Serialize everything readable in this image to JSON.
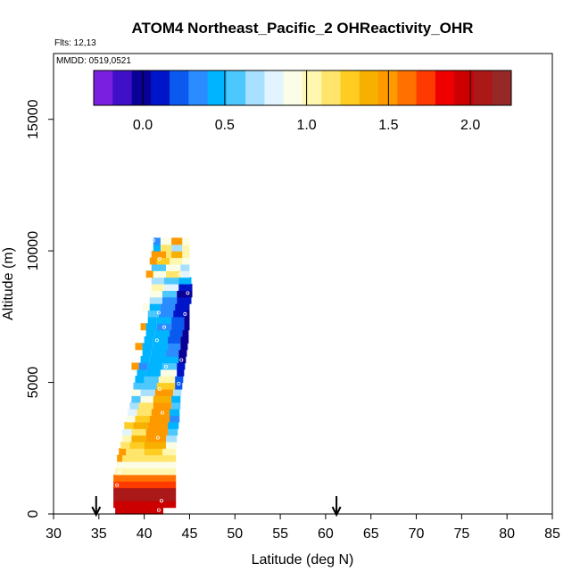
{
  "chart_data": {
    "type": "heatmap",
    "title": "ATOM4 Northeast_Pacific_2 OHReactivity_OHR",
    "flights_label": "Flts: 12,13",
    "mmdd_label": "MMDD: 0519,0521",
    "xlabel": "Latitude (deg N)",
    "ylabel": "Altitude (m)",
    "xlim": [
      30,
      85
    ],
    "ylim": [
      0,
      17500
    ],
    "x_ticks": [
      "30",
      "35",
      "40",
      "45",
      "50",
      "55",
      "60",
      "65",
      "70",
      "75",
      "80",
      "85"
    ],
    "y_ticks": [
      "0",
      "5000",
      "10000",
      "15000"
    ],
    "colorbar": {
      "range": [
        -0.3,
        2.25
      ],
      "ticks": [
        "0.0",
        "0.5",
        "1.0",
        "1.5",
        "2.0"
      ],
      "colors": [
        "#7a1fe0",
        "#3f10c8",
        "#0a0096",
        "#0014c8",
        "#0a5af0",
        "#2a8cff",
        "#00b4ff",
        "#4cc8ff",
        "#a8e0ff",
        "#e2f4ff",
        "#fbfde6",
        "#fff7b0",
        "#ffe56a",
        "#ffcc22",
        "#f8b000",
        "#ff9900",
        "#ff7000",
        "#ff3a00",
        "#ee0000",
        "#cc0000",
        "#aa1818",
        "#962828"
      ]
    },
    "arrows_lat": [
      34.7,
      61.2
    ],
    "alt_bin_m": 250,
    "rows": [
      {
        "alt": 125,
        "cells": [
          [
            36.8,
            42.1,
            1.95
          ]
        ]
      },
      {
        "alt": 375,
        "cells": [
          [
            36.6,
            43.5,
            2.0
          ]
        ]
      },
      {
        "alt": 625,
        "cells": [
          [
            36.6,
            43.5,
            2.05
          ]
        ]
      },
      {
        "alt": 875,
        "cells": [
          [
            36.6,
            43.5,
            2.1
          ]
        ]
      },
      {
        "alt": 1125,
        "cells": [
          [
            36.6,
            43.5,
            1.7
          ]
        ]
      },
      {
        "alt": 1375,
        "cells": [
          [
            36.6,
            43.5,
            1.6
          ]
        ]
      },
      {
        "alt": 1625,
        "cells": [
          [
            36.8,
            43.5,
            1.0
          ]
        ]
      },
      {
        "alt": 1875,
        "cells": [
          [
            37.0,
            43.5,
            0.95
          ]
        ]
      },
      {
        "alt": 2125,
        "cells": [
          [
            37.0,
            37.6,
            1.5
          ],
          [
            37.6,
            40.0,
            1.2
          ],
          [
            40.0,
            42.0,
            1.1
          ],
          [
            42.0,
            43.5,
            1.15
          ]
        ]
      },
      {
        "alt": 2375,
        "cells": [
          [
            37.2,
            38.0,
            1.45
          ],
          [
            38.0,
            40.0,
            1.1
          ],
          [
            40.0,
            42.0,
            1.25
          ],
          [
            42.0,
            43.5,
            1.05
          ]
        ]
      },
      {
        "alt": 2625,
        "cells": [
          [
            37.4,
            38.4,
            1.1
          ],
          [
            38.4,
            40.0,
            1.3
          ],
          [
            40.0,
            42.4,
            1.4
          ],
          [
            42.4,
            43.6,
            0.95
          ]
        ]
      },
      {
        "alt": 2875,
        "cells": [
          [
            37.6,
            38.6,
            1.0
          ],
          [
            38.6,
            40.2,
            1.35
          ],
          [
            40.2,
            42.4,
            1.5
          ],
          [
            42.4,
            43.6,
            0.7
          ]
        ]
      },
      {
        "alt": 3125,
        "cells": [
          [
            37.6,
            38.6,
            0.8
          ],
          [
            38.6,
            40.2,
            1.2
          ],
          [
            40.2,
            42.6,
            1.45
          ],
          [
            42.6,
            43.7,
            0.6
          ]
        ]
      },
      {
        "alt": 3375,
        "cells": [
          [
            37.8,
            38.8,
            1.25
          ],
          [
            38.8,
            40.4,
            1.4
          ],
          [
            40.4,
            42.6,
            1.55
          ],
          [
            42.6,
            43.8,
            0.4
          ]
        ]
      },
      {
        "alt": 3625,
        "cells": [
          [
            38.0,
            39.0,
            0.9
          ],
          [
            39.0,
            40.6,
            1.3
          ],
          [
            40.6,
            42.8,
            1.5
          ],
          [
            42.8,
            43.9,
            0.3
          ]
        ]
      },
      {
        "alt": 3875,
        "cells": [
          [
            38.2,
            39.2,
            0.8
          ],
          [
            39.2,
            40.8,
            1.2
          ],
          [
            40.8,
            42.8,
            1.45
          ],
          [
            42.8,
            43.9,
            0.5
          ]
        ]
      },
      {
        "alt": 4125,
        "cells": [
          [
            38.4,
            39.4,
            0.65
          ],
          [
            39.4,
            41.0,
            1.1
          ],
          [
            41.0,
            43.0,
            1.55
          ],
          [
            43.0,
            44.0,
            0.6
          ]
        ]
      },
      {
        "alt": 4375,
        "cells": [
          [
            38.6,
            39.6,
            0.55
          ],
          [
            39.6,
            41.0,
            0.9
          ],
          [
            41.0,
            43.0,
            1.4
          ],
          [
            43.0,
            44.0,
            0.5
          ]
        ]
      },
      {
        "alt": 4625,
        "cells": [
          [
            38.6,
            39.6,
            0.9
          ],
          [
            39.6,
            41.2,
            0.7
          ],
          [
            41.2,
            43.2,
            1.5
          ],
          [
            43.2,
            44.1,
            0.7
          ]
        ]
      },
      {
        "alt": 4875,
        "cells": [
          [
            38.8,
            39.8,
            0.6
          ],
          [
            39.8,
            41.4,
            0.55
          ],
          [
            41.4,
            43.4,
            1.3
          ],
          [
            43.4,
            44.2,
            0.25
          ]
        ]
      },
      {
        "alt": 5125,
        "cells": [
          [
            39.0,
            40.0,
            0.4
          ],
          [
            40.0,
            41.6,
            0.6
          ],
          [
            41.6,
            43.4,
            1.0
          ],
          [
            43.4,
            44.3,
            0.2
          ]
        ]
      },
      {
        "alt": 5375,
        "cells": [
          [
            39.2,
            40.2,
            0.45
          ],
          [
            40.2,
            41.8,
            0.5
          ],
          [
            41.8,
            43.6,
            0.9
          ],
          [
            43.6,
            44.4,
            0.15
          ]
        ]
      },
      {
        "alt": 5625,
        "cells": [
          [
            38.6,
            39.4,
            1.55
          ],
          [
            39.4,
            40.4,
            0.35
          ],
          [
            40.4,
            42.0,
            0.45
          ],
          [
            42.0,
            43.6,
            0.6
          ],
          [
            43.6,
            44.5,
            0.05
          ]
        ]
      },
      {
        "alt": 5875,
        "cells": [
          [
            39.6,
            40.6,
            0.4
          ],
          [
            40.6,
            42.2,
            0.45
          ],
          [
            42.2,
            43.8,
            0.45
          ],
          [
            43.8,
            44.6,
            0.0
          ]
        ]
      },
      {
        "alt": 6125,
        "cells": [
          [
            39.8,
            40.8,
            0.4
          ],
          [
            40.8,
            42.4,
            0.4
          ],
          [
            42.4,
            43.8,
            0.35
          ],
          [
            43.8,
            44.7,
            -0.05
          ]
        ]
      },
      {
        "alt": 6375,
        "cells": [
          [
            39.0,
            39.8,
            1.45
          ],
          [
            39.8,
            41.0,
            0.45
          ],
          [
            41.0,
            42.6,
            0.4
          ],
          [
            42.6,
            44.0,
            0.3
          ],
          [
            44.0,
            44.8,
            0.0
          ]
        ]
      },
      {
        "alt": 6625,
        "cells": [
          [
            40.0,
            41.0,
            0.4
          ],
          [
            41.0,
            42.6,
            0.45
          ],
          [
            42.6,
            44.0,
            0.25
          ],
          [
            44.0,
            44.9,
            0.0
          ]
        ]
      },
      {
        "alt": 6875,
        "cells": [
          [
            40.2,
            41.2,
            0.5
          ],
          [
            41.2,
            42.8,
            0.4
          ],
          [
            42.8,
            44.2,
            0.25
          ],
          [
            44.2,
            44.9,
            -0.05
          ]
        ]
      },
      {
        "alt": 7125,
        "cells": [
          [
            39.6,
            40.2,
            1.5
          ],
          [
            40.2,
            41.4,
            0.45
          ],
          [
            41.4,
            43.0,
            0.35
          ],
          [
            43.0,
            44.4,
            0.2
          ],
          [
            44.4,
            45.0,
            0.0
          ]
        ]
      },
      {
        "alt": 7375,
        "cells": [
          [
            40.4,
            41.4,
            0.5
          ],
          [
            41.4,
            43.0,
            0.4
          ],
          [
            43.0,
            44.4,
            0.25
          ],
          [
            44.4,
            45.0,
            -0.05
          ]
        ]
      },
      {
        "alt": 7625,
        "cells": [
          [
            40.4,
            41.6,
            0.6
          ],
          [
            41.6,
            43.2,
            0.35
          ],
          [
            43.2,
            44.6,
            0.15
          ],
          [
            44.6,
            45.0,
            0.0
          ]
        ]
      },
      {
        "alt": 7875,
        "cells": [
          [
            39.8,
            40.6,
            0.95
          ],
          [
            40.6,
            41.8,
            0.5
          ],
          [
            41.8,
            43.4,
            0.3
          ],
          [
            43.4,
            45.0,
            0.1
          ]
        ]
      },
      {
        "alt": 8125,
        "cells": [
          [
            40.6,
            42.0,
            0.7
          ],
          [
            42.0,
            43.6,
            0.35
          ],
          [
            43.6,
            45.2,
            0.1
          ]
        ]
      },
      {
        "alt": 8375,
        "cells": [
          [
            40.6,
            42.0,
            0.9
          ],
          [
            42.0,
            43.6,
            0.6
          ],
          [
            43.6,
            45.3,
            0.0
          ]
        ]
      },
      {
        "alt": 8625,
        "cells": [
          [
            40.8,
            42.2,
            1.0
          ],
          [
            42.2,
            43.8,
            0.85
          ],
          [
            43.8,
            45.3,
            0.05
          ]
        ]
      },
      {
        "alt": 8875,
        "cells": [
          [
            40.8,
            42.2,
            0.7
          ],
          [
            42.2,
            43.8,
            0.55
          ],
          [
            43.8,
            45.2,
            0.4
          ]
        ]
      },
      {
        "alt": 9125,
        "cells": [
          [
            40.2,
            41.0,
            1.55
          ],
          [
            41.0,
            42.4,
            0.95
          ],
          [
            42.4,
            44.0,
            1.1
          ],
          [
            44.0,
            45.0,
            0.8
          ]
        ]
      },
      {
        "alt": 9375,
        "cells": [
          [
            40.8,
            42.4,
            0.6
          ],
          [
            42.4,
            44.0,
            0.95
          ],
          [
            44.0,
            45.0,
            0.7
          ]
        ]
      },
      {
        "alt": 9625,
        "cells": [
          [
            40.6,
            41.4,
            1.45
          ],
          [
            41.4,
            42.8,
            1.3
          ],
          [
            42.8,
            44.2,
            1.05
          ],
          [
            44.2,
            45.0,
            0.9
          ]
        ]
      },
      {
        "alt": 9875,
        "cells": [
          [
            40.8,
            42.4,
            1.5
          ],
          [
            42.4,
            43.0,
            1.1
          ],
          [
            43.0,
            44.2,
            1.4
          ],
          [
            44.2,
            45.0,
            1.0
          ]
        ]
      },
      {
        "alt": 10125,
        "cells": [
          [
            41.0,
            41.8,
            0.4
          ],
          [
            41.8,
            43.0,
            1.1
          ],
          [
            43.0,
            44.2,
            0.7
          ],
          [
            44.2,
            45.0,
            1.0
          ]
        ]
      },
      {
        "alt": 10375,
        "cells": [
          [
            41.0,
            41.8,
            0.3
          ],
          [
            41.8,
            43.0,
            0.9
          ],
          [
            43.0,
            44.2,
            1.5
          ],
          [
            44.2,
            45.0,
            0.9
          ]
        ]
      }
    ],
    "track_points": [
      [
        41.6,
        150
      ],
      [
        41.9,
        500
      ],
      [
        37.0,
        1100
      ],
      [
        37.3,
        1600
      ],
      [
        41.5,
        2900
      ],
      [
        42.0,
        3850
      ],
      [
        41.7,
        4750
      ],
      [
        43.8,
        4950
      ],
      [
        42.4,
        5600
      ],
      [
        44.1,
        5850
      ],
      [
        41.4,
        6600
      ],
      [
        42.2,
        7100
      ],
      [
        41.6,
        7650
      ],
      [
        44.5,
        7600
      ],
      [
        44.8,
        8400
      ],
      [
        43.9,
        9100
      ],
      [
        41.7,
        9700
      ],
      [
        41.0,
        10400
      ]
    ]
  }
}
